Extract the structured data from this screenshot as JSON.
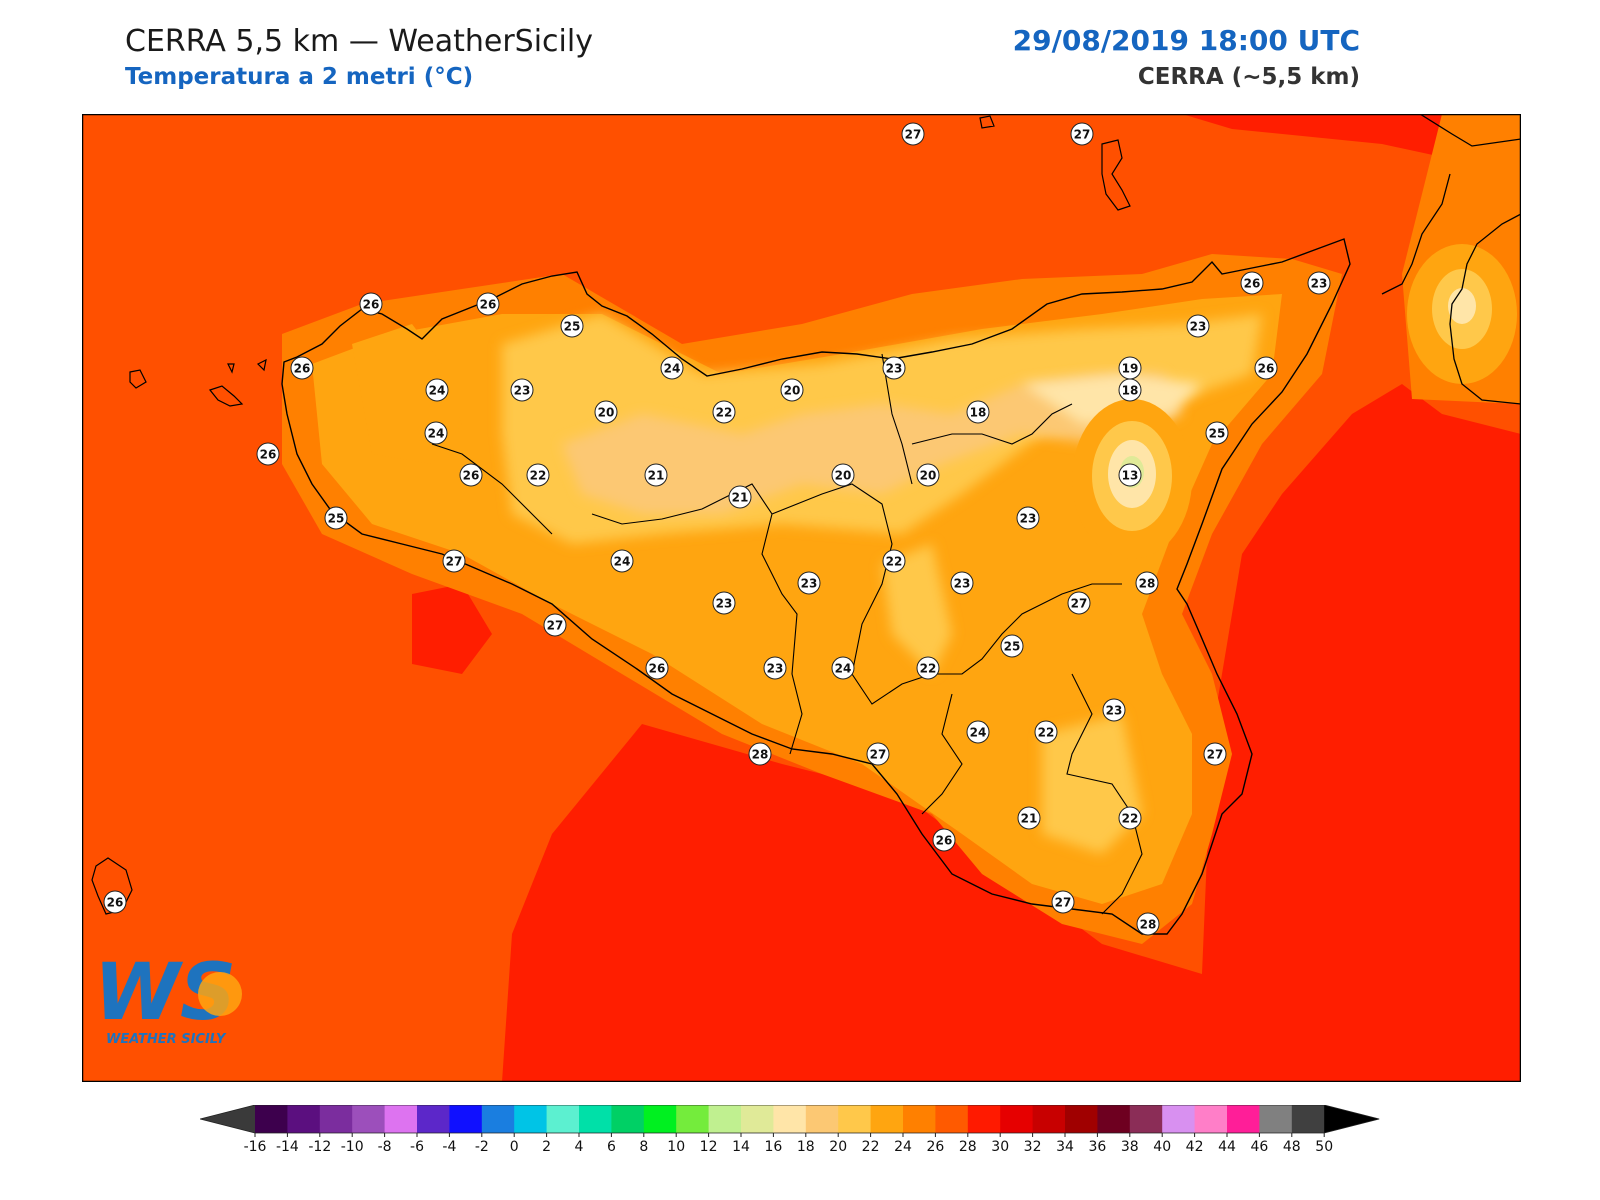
{
  "header": {
    "title": "CERRA 5,5 km — WeatherSicily",
    "subtitle": "Temperatura a 2 metri (°C)",
    "datetime": "29/08/2019 18:00 UTC",
    "model": "CERRA (~5,5 km)"
  },
  "logo": {
    "letters": "WS",
    "text": "WEATHER SICILY"
  },
  "colorbar": {
    "unit": "°C",
    "min": -16,
    "max": 50,
    "step": 2,
    "tick_labels": [
      "-16",
      "-14",
      "-12",
      "-10",
      "-8",
      "-6",
      "-4",
      "-2",
      "0",
      "2",
      "4",
      "6",
      "8",
      "10",
      "12",
      "14",
      "16",
      "18",
      "20",
      "22",
      "24",
      "26",
      "28",
      "30",
      "32",
      "34",
      "36",
      "38",
      "40",
      "42",
      "44",
      "46",
      "48",
      "50"
    ],
    "under_color": "#3a3a3a",
    "over_color": "#000000",
    "colors": [
      "#3d004d",
      "#5b0f7f",
      "#7b2d9e",
      "#9c4fbb",
      "#dd73f0",
      "#5c27c9",
      "#1010ff",
      "#1a7ee0",
      "#00c4e6",
      "#5cf0d0",
      "#00e0a8",
      "#00d065",
      "#00f020",
      "#74ec3c",
      "#c0f090",
      "#e0ea98",
      "#ffe5a8",
      "#fcc873",
      "#ffc84a",
      "#ffa510",
      "#ff8000",
      "#ff5a00",
      "#ff1a00",
      "#e60000",
      "#c80000",
      "#a00000",
      "#6e0020",
      "#8b2d57",
      "#d890f0",
      "#ff7ec8",
      "#ff1e98",
      "#808080",
      "#404040"
    ]
  },
  "map": {
    "sea_colors": {
      "open": "#ff5000",
      "south_hot": "#ff1e00"
    },
    "stations": [
      {
        "v": "27"
      },
      {
        "v": "27"
      },
      {
        "v": "26"
      },
      {
        "v": "26"
      },
      {
        "v": "25"
      },
      {
        "v": "24"
      },
      {
        "v": "26"
      },
      {
        "v": "24"
      },
      {
        "v": "23"
      },
      {
        "v": "26"
      },
      {
        "v": "23"
      },
      {
        "v": "24"
      },
      {
        "v": "23"
      },
      {
        "v": "20"
      },
      {
        "v": "22"
      },
      {
        "v": "20"
      },
      {
        "v": "23"
      },
      {
        "v": "18"
      },
      {
        "v": "18"
      },
      {
        "v": "19"
      },
      {
        "v": "26"
      },
      {
        "v": "26"
      },
      {
        "v": "25"
      },
      {
        "v": "13"
      },
      {
        "v": "26"
      },
      {
        "v": "25"
      },
      {
        "v": "22"
      },
      {
        "v": "21"
      },
      {
        "v": "21"
      },
      {
        "v": "20"
      },
      {
        "v": "20"
      },
      {
        "v": "23"
      },
      {
        "v": "27"
      },
      {
        "v": "24"
      },
      {
        "v": "23"
      },
      {
        "v": "22"
      },
      {
        "v": "23"
      },
      {
        "v": "28"
      },
      {
        "v": "27"
      },
      {
        "v": "23"
      },
      {
        "v": "27"
      },
      {
        "v": "25"
      },
      {
        "v": "26"
      },
      {
        "v": "23"
      },
      {
        "v": "24"
      },
      {
        "v": "22"
      },
      {
        "v": "24"
      },
      {
        "v": "22"
      },
      {
        "v": "23"
      },
      {
        "v": "27"
      },
      {
        "v": "28"
      },
      {
        "v": "27"
      },
      {
        "v": "26"
      },
      {
        "v": "21"
      },
      {
        "v": "22"
      },
      {
        "v": "27"
      },
      {
        "v": "28"
      },
      {
        "v": "26"
      }
    ]
  }
}
